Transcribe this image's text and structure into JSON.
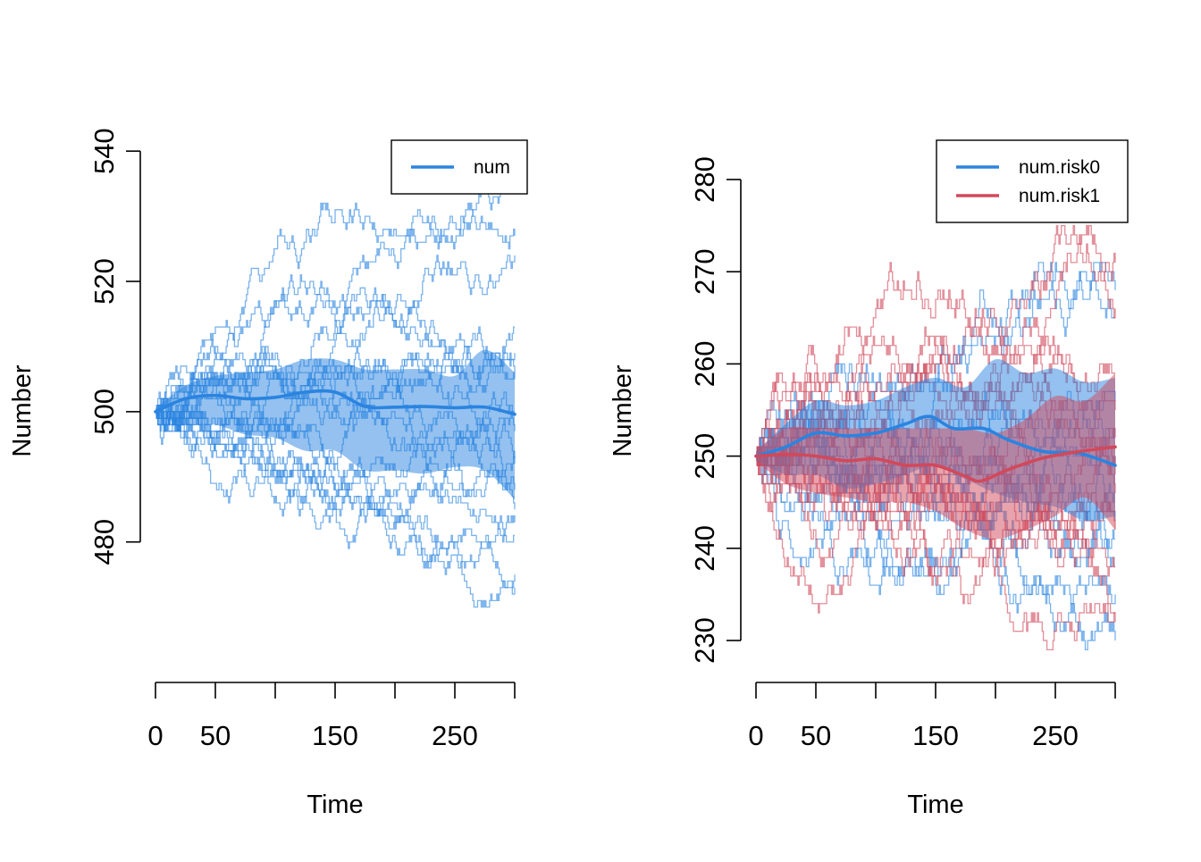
{
  "chart_data": [
    {
      "type": "line",
      "title": "",
      "xlabel": "Time",
      "ylabel": "Number",
      "xlim": [
        0,
        300
      ],
      "ylim": [
        462,
        544
      ],
      "x_ticks": [
        0,
        50,
        100,
        150,
        200,
        250,
        300
      ],
      "x_tick_labels": [
        "0",
        "50",
        "",
        "150",
        "",
        "250",
        ""
      ],
      "y_ticks": [
        480,
        500,
        520,
        540
      ],
      "y_tick_labels": [
        "480",
        "500",
        "520",
        "540"
      ],
      "legend": {
        "position": "top-right",
        "entries": [
          "num"
        ]
      },
      "series": [
        {
          "name": "num",
          "color": "#2a84e0",
          "mean": {
            "x": [
              0,
              25,
              50,
              75,
              100,
              125,
              150,
              175,
              200,
              225,
              250,
              275,
              300
            ],
            "y": [
              500,
              502,
              502.5,
              502,
              502.2,
              503,
              503,
              500.8,
              500.7,
              500.8,
              500.6,
              500.7,
              499.6
            ]
          },
          "band": {
            "x": [
              0,
              25,
              50,
              75,
              100,
              125,
              150,
              175,
              200,
              225,
              250,
              275,
              300
            ],
            "upper": [
              500.5,
              504,
              505.5,
              506,
              506.5,
              508,
              508,
              506.5,
              506.5,
              506.5,
              505.5,
              509.5,
              506
            ],
            "lower": [
              499.5,
              498,
              498,
              496.5,
              496,
              494,
              494,
              491,
              491,
              490.5,
              491.5,
              491,
              486.5
            ]
          },
          "sim_final": [
            537,
            527,
            524,
            513,
            509,
            506,
            505,
            500,
            497,
            494,
            492,
            488,
            485,
            483,
            481,
            475,
            473
          ]
        }
      ]
    },
    {
      "type": "line",
      "title": "",
      "xlabel": "Time",
      "ylabel": "Number",
      "xlim": [
        0,
        300
      ],
      "ylim": [
        227,
        283
      ],
      "x_ticks": [
        0,
        50,
        100,
        150,
        200,
        250,
        300
      ],
      "x_tick_labels": [
        "0",
        "50",
        "",
        "150",
        "",
        "250",
        ""
      ],
      "y_ticks": [
        230,
        240,
        250,
        260,
        270,
        280
      ],
      "y_tick_labels": [
        "230",
        "240",
        "250",
        "260",
        "270",
        "280"
      ],
      "legend": {
        "position": "top-right",
        "entries": [
          "num.risk0",
          "num.risk1"
        ]
      },
      "series": [
        {
          "name": "num.risk0",
          "color": "#2a84e0",
          "mean": {
            "x": [
              0,
              25,
              50,
              75,
              100,
              125,
              145,
              165,
              190,
              210,
              240,
              270,
              300
            ],
            "y": [
              250,
              251,
              252.5,
              252.2,
              252.5,
              253.5,
              254.3,
              253,
              253,
              251.8,
              250.5,
              250.3,
              249
            ]
          },
          "band": {
            "x": [
              0,
              25,
              50,
              75,
              100,
              125,
              150,
              175,
              200,
              225,
              250,
              275,
              300
            ],
            "upper": [
              250.5,
              253.5,
              256,
              255.5,
              256,
              257.5,
              258.5,
              257.5,
              260.5,
              259,
              259.5,
              258,
              258.5
            ],
            "lower": [
              249.5,
              248,
              248,
              246.5,
              247,
              248,
              249,
              247.5,
              246,
              245,
              244.5,
              243,
              243.5
            ]
          },
          "sim_final": [
            268,
            265,
            256,
            253,
            250,
            246,
            243,
            241,
            238,
            235,
            230
          ]
        },
        {
          "name": "num.risk1",
          "color": "#d1495b",
          "mean": {
            "x": [
              0,
              25,
              50,
              75,
              100,
              125,
              150,
              175,
              188,
              210,
              240,
              270,
              300
            ],
            "y": [
              250,
              250.2,
              250,
              249.5,
              249.7,
              249,
              249,
              247.8,
              247.3,
              248.5,
              249.8,
              250.5,
              251
            ]
          },
          "band": {
            "x": [
              0,
              25,
              50,
              75,
              100,
              125,
              150,
              175,
              200,
              225,
              250,
              275,
              300
            ],
            "upper": [
              250.5,
              253,
              253,
              253,
              253,
              253,
              253,
              253,
              252.5,
              254,
              256.5,
              256,
              259
            ],
            "lower": [
              249.5,
              247,
              246,
              245.5,
              245,
              245,
              244,
              242,
              241,
              242,
              243.5,
              245.5,
              242
            ]
          },
          "sim_final": [
            271,
            266,
            259,
            255,
            252,
            250,
            248,
            246,
            244,
            242,
            238,
            233,
            232
          ]
        }
      ]
    }
  ]
}
